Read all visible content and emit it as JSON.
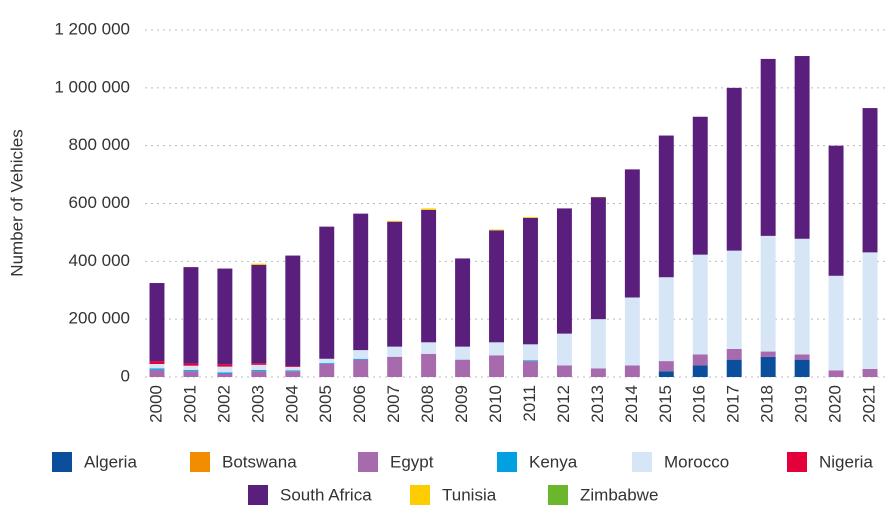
{
  "chart_data": {
    "type": "bar",
    "stacked": true,
    "y_label": "Number of Vehicles",
    "categories": [
      "2000",
      "2001",
      "2002",
      "2003",
      "2004",
      "2005",
      "2006",
      "2007",
      "2008",
      "2009",
      "2010",
      "2011",
      "2012",
      "2013",
      "2014",
      "2015",
      "2016",
      "2017",
      "2018",
      "2019",
      "2020",
      "2021"
    ],
    "ylim": [
      0,
      1200000
    ],
    "yticks": [
      0,
      {
        "value": 200000,
        "label": "200 000"
      },
      {
        "value": 400000,
        "label": "400 000"
      },
      {
        "value": 600000,
        "label": "600 000"
      },
      {
        "value": 800000,
        "label": "800 000"
      },
      {
        "value": 1000000,
        "label": "1 000 000"
      },
      {
        "value": 1200000,
        "label": "1 200 000"
      }
    ],
    "grid": true,
    "legend": "bottom",
    "series": [
      {
        "name": "Algeria",
        "color": "#0b4f9c",
        "values": [
          0,
          0,
          0,
          0,
          0,
          0,
          0,
          0,
          0,
          0,
          0,
          0,
          0,
          0,
          0,
          20000,
          40000,
          60000,
          70000,
          60000,
          0,
          0
        ]
      },
      {
        "name": "Botswana",
        "color": "#f28c00",
        "values": [
          0,
          0,
          0,
          0,
          0,
          0,
          0,
          0,
          0,
          0,
          0,
          0,
          0,
          0,
          0,
          0,
          0,
          0,
          0,
          0,
          0,
          0
        ]
      },
      {
        "name": "Egypt",
        "color": "#a66aad",
        "values": [
          25000,
          20000,
          12000,
          20000,
          20000,
          45000,
          60000,
          70000,
          80000,
          60000,
          75000,
          55000,
          40000,
          30000,
          40000,
          35000,
          38000,
          37000,
          18000,
          18000,
          23000,
          28000
        ]
      },
      {
        "name": "Kenya",
        "color": "#00a0e1",
        "values": [
          5000,
          4000,
          4000,
          4000,
          3000,
          3000,
          3000,
          0,
          0,
          0,
          0,
          3000,
          0,
          0,
          0,
          0,
          0,
          0,
          0,
          0,
          0,
          0
        ]
      },
      {
        "name": "Morocco",
        "color": "#d6e6f7",
        "values": [
          15000,
          15000,
          20000,
          18000,
          12000,
          15000,
          30000,
          35000,
          40000,
          45000,
          45000,
          55000,
          110000,
          170000,
          235000,
          290000,
          345000,
          340000,
          400000,
          400000,
          327000,
          403000
        ]
      },
      {
        "name": "Nigeria",
        "color": "#e4003b",
        "values": [
          10000,
          8000,
          8000,
          6000,
          3000,
          0,
          0,
          0,
          0,
          0,
          0,
          0,
          0,
          0,
          0,
          0,
          0,
          0,
          0,
          0,
          0,
          0
        ]
      },
      {
        "name": "South Africa",
        "color": "#5a1f7d",
        "values": [
          270000,
          333000,
          331000,
          340000,
          382000,
          457000,
          472000,
          432000,
          458000,
          305000,
          387000,
          437000,
          433000,
          422000,
          443000,
          490000,
          477000,
          563000,
          612000,
          632000,
          450000,
          499000
        ]
      },
      {
        "name": "Tunisia",
        "color": "#ffcc00",
        "values": [
          0,
          0,
          0,
          4000,
          0,
          0,
          0,
          3000,
          5000,
          0,
          3000,
          3000,
          0,
          1000,
          0,
          0,
          0,
          0,
          0,
          0,
          0,
          0
        ]
      },
      {
        "name": "Zimbabwe",
        "color": "#6ab72e",
        "values": [
          0,
          0,
          0,
          0,
          0,
          0,
          0,
          0,
          0,
          0,
          0,
          0,
          0,
          0,
          0,
          0,
          0,
          0,
          0,
          0,
          0,
          0
        ]
      }
    ]
  }
}
